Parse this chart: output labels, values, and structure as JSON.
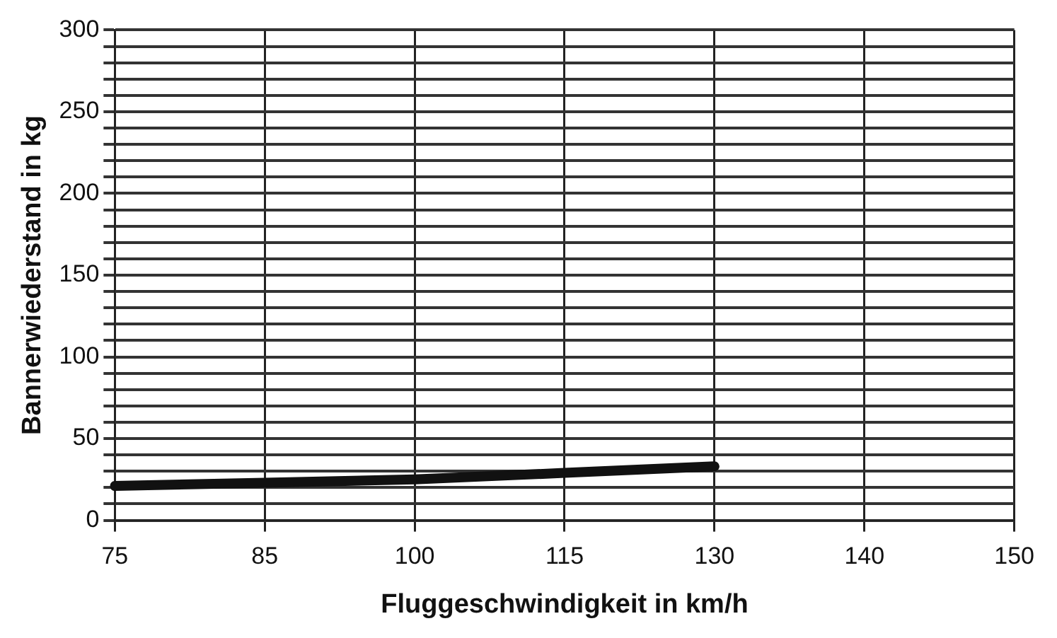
{
  "chart_data": {
    "type": "line",
    "xlabel": "Fluggeschwindigkeit in km/h",
    "ylabel": "Bannerwiederstand in kg",
    "categories": [
      "75",
      "85",
      "100",
      "115",
      "130",
      "140",
      "150"
    ],
    "series": [
      {
        "color": "#111111",
        "values": [
          21,
          23,
          25,
          29,
          33,
          null,
          null
        ]
      }
    ],
    "ylim": [
      0,
      300
    ],
    "yticks": [
      0,
      {
        "value": 10,
        "label": null
      },
      {
        "value": 20,
        "label": null
      },
      {
        "value": 30,
        "label": null
      },
      {
        "value": 40,
        "label": null
      },
      50,
      {
        "value": 60,
        "label": null
      },
      {
        "value": 70,
        "label": null
      },
      {
        "value": 80,
        "label": null
      },
      {
        "value": 90,
        "label": null
      },
      100,
      {
        "value": 110,
        "label": null
      },
      {
        "value": 120,
        "label": null
      },
      {
        "value": 130,
        "label": null
      },
      {
        "value": 140,
        "label": null
      },
      150,
      {
        "value": 160,
        "label": null
      },
      {
        "value": 170,
        "label": null
      },
      {
        "value": 180,
        "label": null
      },
      {
        "value": 190,
        "label": null
      },
      200,
      {
        "value": 210,
        "label": null
      },
      {
        "value": 220,
        "label": null
      },
      {
        "value": 230,
        "label": null
      },
      {
        "value": 240,
        "label": null
      },
      250,
      {
        "value": 260,
        "label": null
      },
      {
        "value": 270,
        "label": null
      },
      {
        "value": 280,
        "label": null
      },
      {
        "value": 290,
        "label": null
      },
      300
    ],
    "grid": true,
    "legend": false,
    "marker": "none",
    "line_style": "solid"
  }
}
